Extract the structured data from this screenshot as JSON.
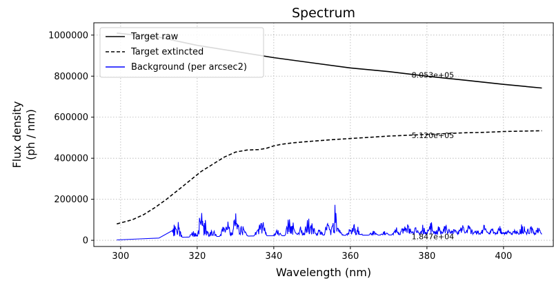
{
  "chart_data": {
    "type": "line",
    "title": "Spectrum",
    "xlabel": "Wavelength (nm)",
    "ylabel_lines": [
      "Flux density",
      "(ph / nm)"
    ],
    "xlim": [
      293,
      413
    ],
    "ylim": [
      -30000,
      1060000
    ],
    "xticks": [
      300,
      320,
      340,
      360,
      380,
      400
    ],
    "yticks": [
      0,
      200000,
      400000,
      600000,
      800000,
      1000000
    ],
    "grid": true,
    "legend_position": "top-left",
    "series": [
      {
        "name": "Target raw",
        "color": "#000000",
        "style": "solid",
        "x": [
          299,
          305,
          310,
          315,
          320,
          330,
          340,
          350,
          360,
          370,
          380,
          385,
          390,
          400,
          410
        ],
        "y": [
          1010000,
          998000,
          990000,
          970000,
          950000,
          920000,
          890000,
          865000,
          840000,
          822000,
          800000,
          790000,
          780000,
          760000,
          742000
        ]
      },
      {
        "name": "Target extincted",
        "color": "#000000",
        "style": "dashed",
        "x": [
          299,
          303,
          306,
          309,
          312,
          315,
          318,
          321,
          324,
          327,
          330,
          333,
          336,
          338,
          340,
          342,
          345,
          350,
          355,
          360,
          365,
          370,
          375,
          380,
          385,
          390,
          395,
          400,
          405,
          410
        ],
        "y": [
          80000,
          100000,
          125000,
          160000,
          200000,
          245000,
          290000,
          335000,
          370000,
          405000,
          430000,
          440000,
          442000,
          448000,
          460000,
          468000,
          475000,
          483000,
          490000,
          496000,
          502000,
          508000,
          512000,
          516000,
          520000,
          524000,
          526000,
          530000,
          532000,
          534000
        ]
      },
      {
        "name": "Background (per arcsec2)",
        "color": "#0000ff",
        "style": "noisy",
        "x": [
          299,
          305,
          310,
          314,
          318,
          322,
          326,
          330,
          334,
          338,
          342,
          346,
          350,
          354,
          358,
          362,
          366,
          370,
          374,
          378,
          382,
          386,
          390,
          394,
          398,
          402,
          406,
          410
        ],
        "y": [
          2000,
          7000,
          11000,
          14000,
          16000,
          17500,
          19000,
          20000,
          21000,
          22000,
          22500,
          23000,
          23500,
          24000,
          24500,
          25000,
          25500,
          26000,
          26500,
          27000,
          27000,
          27500,
          27500,
          28000,
          28000,
          28000,
          28000,
          28000
        ]
      }
    ],
    "annotations": [
      {
        "text": "8.053e+05",
        "x": 376,
        "y": 805300
      },
      {
        "text": "5.120e+05",
        "x": 376,
        "y": 512000
      },
      {
        "text": "1.847e+04",
        "x": 376,
        "y": 18470
      }
    ],
    "background_spikes": {
      "start": 313.5,
      "end": 410,
      "note_only_for_rendering": false,
      "peaks": [
        {
          "x": 314,
          "y": 100000
        },
        {
          "x": 315,
          "y": 95000
        },
        {
          "x": 319,
          "y": 55000
        },
        {
          "x": 321,
          "y": 175000
        },
        {
          "x": 322,
          "y": 130000
        },
        {
          "x": 324,
          "y": 60000
        },
        {
          "x": 327,
          "y": 85000
        },
        {
          "x": 328,
          "y": 100000
        },
        {
          "x": 330,
          "y": 140000
        },
        {
          "x": 331,
          "y": 110000
        },
        {
          "x": 332,
          "y": 75000
        },
        {
          "x": 336,
          "y": 100000
        },
        {
          "x": 337,
          "y": 120000
        },
        {
          "x": 341,
          "y": 60000
        },
        {
          "x": 344,
          "y": 125000
        },
        {
          "x": 345,
          "y": 90000
        },
        {
          "x": 347,
          "y": 70000
        },
        {
          "x": 349,
          "y": 130000
        },
        {
          "x": 350,
          "y": 100000
        },
        {
          "x": 352,
          "y": 60000
        },
        {
          "x": 354,
          "y": 95000
        },
        {
          "x": 356,
          "y": 178000
        },
        {
          "x": 357,
          "y": 60000
        },
        {
          "x": 360,
          "y": 65000
        },
        {
          "x": 361,
          "y": 90000
        },
        {
          "x": 362,
          "y": 70000
        },
        {
          "x": 366,
          "y": 50000
        },
        {
          "x": 369,
          "y": 45000
        },
        {
          "x": 372,
          "y": 65000
        },
        {
          "x": 374,
          "y": 80000
        },
        {
          "x": 375,
          "y": 95000
        },
        {
          "x": 377,
          "y": 70000
        },
        {
          "x": 379,
          "y": 85000
        },
        {
          "x": 381,
          "y": 100000
        },
        {
          "x": 383,
          "y": 75000
        },
        {
          "x": 385,
          "y": 100000
        },
        {
          "x": 387,
          "y": 70000
        },
        {
          "x": 389,
          "y": 95000
        },
        {
          "x": 391,
          "y": 90000
        },
        {
          "x": 393,
          "y": 60000
        },
        {
          "x": 395,
          "y": 80000
        },
        {
          "x": 397,
          "y": 60000
        },
        {
          "x": 399,
          "y": 75000
        },
        {
          "x": 401,
          "y": 60000
        },
        {
          "x": 403,
          "y": 55000
        },
        {
          "x": 405,
          "y": 100000
        },
        {
          "x": 407,
          "y": 90000
        },
        {
          "x": 409,
          "y": 70000
        }
      ]
    }
  }
}
